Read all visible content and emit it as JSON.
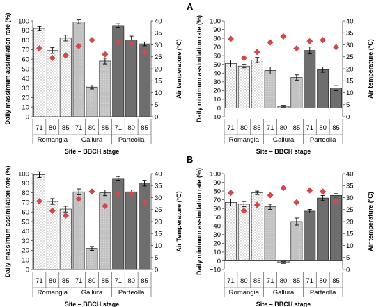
{
  "figure": {
    "panel_letters": [
      "A",
      "B"
    ],
    "colors": {
      "Romangia": "#ffffff",
      "Gallura": "#c2c2c2",
      "Parteolla": "#6e6e6e",
      "marker": "#cc4b4b",
      "axis": "#444444",
      "grid": "#d9d9d9"
    }
  },
  "chart_data": [
    {
      "type": "bar",
      "panel": "A",
      "sites": [
        "Romangia",
        "Gallura",
        "Parteolla"
      ],
      "categories": [
        "71",
        "80",
        "85",
        "71",
        "80",
        "85",
        "71",
        "80",
        "85"
      ],
      "xlabel": "Site  –  BBCH stage",
      "ylabel": "Daily massimum assimilation rate (%)",
      "y2label": "Air temperature (°C)",
      "ylim": [
        0,
        100
      ],
      "yticks": [
        0,
        10,
        20,
        30,
        40,
        50,
        60,
        70,
        80,
        90,
        100
      ],
      "y2lim": [
        0,
        40
      ],
      "y2ticks": [
        0,
        5,
        10,
        15,
        20,
        25,
        30,
        35,
        40
      ],
      "grid": false,
      "series": [
        {
          "kind": "bar",
          "values": [
            92,
            69,
            82,
            99,
            31,
            58,
            95,
            80,
            76
          ],
          "errors": [
            2,
            3,
            3,
            2,
            2,
            3,
            2,
            4,
            2
          ]
        },
        {
          "kind": "marker",
          "axis": "secondary",
          "values": [
            28.5,
            24.5,
            25.5,
            29.5,
            32,
            26,
            31,
            30.5,
            27
          ]
        }
      ]
    },
    {
      "type": "bar",
      "panel": "A",
      "sites": [
        "Romangia",
        "Gallura",
        "Parteolla"
      ],
      "categories": [
        "71",
        "80",
        "85",
        "71",
        "80",
        "85",
        "71",
        "80",
        "85"
      ],
      "xlabel": "Site  –  BBCH stage",
      "ylabel": "Daily minimum assimilation rate (%)",
      "y2label": "Air temperature (°C)",
      "ylim": [
        -10,
        100
      ],
      "yticks": [
        -10,
        0,
        10,
        20,
        30,
        40,
        50,
        60,
        70,
        80,
        90,
        100
      ],
      "y2lim": [
        0,
        40
      ],
      "y2ticks": [
        0,
        5,
        10,
        15,
        20,
        25,
        30,
        35,
        40
      ],
      "grid": false,
      "series": [
        {
          "kind": "bar",
          "values": [
            51,
            48,
            55,
            43,
            2,
            35,
            66,
            44,
            23
          ],
          "errors": [
            4,
            2,
            3,
            4,
            1,
            3,
            4,
            3,
            3
          ]
        },
        {
          "kind": "marker",
          "axis": "secondary",
          "values": [
            32.5,
            24.5,
            27,
            31,
            33.5,
            28.5,
            31.5,
            32,
            29
          ]
        }
      ]
    },
    {
      "type": "bar",
      "panel": "B",
      "sites": [
        "Romangia",
        "Gallura",
        "Parteolla"
      ],
      "categories": [
        "71",
        "80",
        "85",
        "71",
        "80",
        "85",
        "71",
        "80",
        "85"
      ],
      "xlabel": "Site  –  BBCH stage",
      "ylabel": "Daily massimum assimilation rate (%)",
      "y2label": "Air Temperature (°C)",
      "ylim": [
        0,
        100
      ],
      "yticks": [
        0,
        10,
        20,
        30,
        40,
        50,
        60,
        70,
        80,
        90,
        100
      ],
      "y2lim": [
        0,
        40
      ],
      "y2ticks": [
        0,
        5,
        10,
        15,
        20,
        25,
        30,
        35,
        40
      ],
      "grid": false,
      "series": [
        {
          "kind": "bar",
          "values": [
            99,
            71,
            63,
            81,
            22,
            80,
            95,
            81,
            90
          ],
          "errors": [
            3,
            3,
            3,
            3,
            2,
            3,
            2,
            2,
            3
          ]
        },
        {
          "kind": "marker",
          "axis": "secondary",
          "values": [
            28.5,
            24.5,
            22.5,
            29.5,
            32.5,
            26.5,
            31.5,
            31.5,
            28
          ]
        }
      ]
    },
    {
      "type": "bar",
      "panel": "B",
      "sites": [
        "Romangia",
        "Gallura",
        "Parteolla"
      ],
      "categories": [
        "71",
        "80",
        "85",
        "71",
        "80",
        "85",
        "71",
        "80",
        "85"
      ],
      "xlabel": "Site  –  BBCH stage",
      "ylabel": "Daily minimum assimilation rate (%)",
      "y2label": "Air temperature (°C)",
      "ylim": [
        -10,
        100
      ],
      "yticks": [
        -10,
        0,
        10,
        20,
        30,
        40,
        50,
        60,
        70,
        80,
        90,
        100
      ],
      "y2lim": [
        0,
        40
      ],
      "y2ticks": [
        0,
        5,
        10,
        15,
        20,
        25,
        30,
        35,
        40
      ],
      "grid": false,
      "series": [
        {
          "kind": "bar",
          "values": [
            67,
            65,
            78,
            62,
            -2,
            45,
            57,
            72,
            75
          ],
          "errors": [
            4,
            3,
            2,
            3,
            1,
            4,
            2,
            3,
            2
          ]
        },
        {
          "kind": "marker",
          "axis": "secondary",
          "values": [
            32,
            24.5,
            27,
            31,
            34,
            28,
            33,
            32.5,
            28.5
          ]
        }
      ]
    }
  ]
}
